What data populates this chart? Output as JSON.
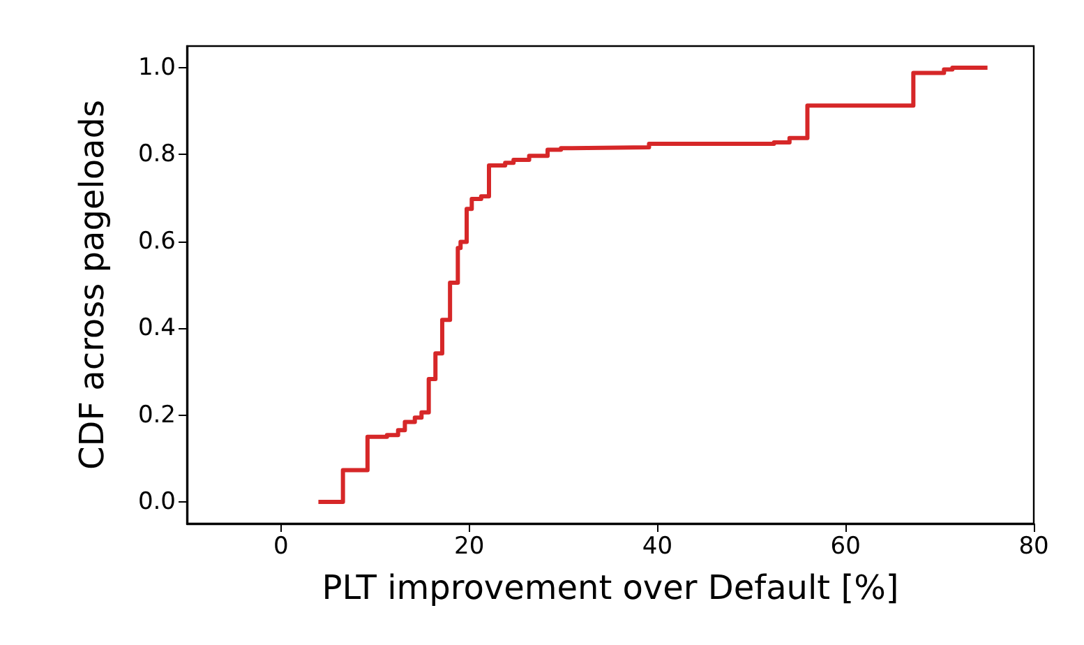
{
  "chart_data": {
    "type": "step",
    "xlabel": "PLT improvement over Default [%]",
    "ylabel": "CDF across pageloads",
    "x": [
      3.97,
      6.58,
      9.19,
      11.26,
      12.44,
      13.16,
      14.22,
      14.93,
      15.7,
      16.41,
      17.13,
      17.96,
      18.79,
      19.08,
      19.73,
      20.27,
      21.27,
      22.1,
      23.82,
      24.71,
      26.37,
      28.33,
      29.75,
      30.93,
      39.11,
      52.39,
      54.04,
      55.94,
      67.2,
      70.46,
      71.35,
      75.08
    ],
    "series": [
      {
        "color": "#d62728",
        "values": [
          0,
          0.073,
          0.15,
          0.154,
          0.165,
          0.184,
          0.194,
          0.206,
          0.283,
          0.342,
          0.419,
          0.505,
          0.585,
          0.599,
          0.675,
          0.698,
          0.704,
          0.775,
          0.781,
          0.788,
          0.797,
          0.811,
          0.815,
          0.817,
          0.825,
          0.828,
          0.838,
          0.913,
          0.988,
          0.996,
          1.0,
          1.0
        ]
      }
    ],
    "xlim": [
      -10,
      80
    ],
    "xticks": [
      0,
      20,
      40,
      60,
      80
    ],
    "ylim": [
      -0.05,
      1.05
    ],
    "yticks": [
      {
        "value": 0,
        "label": "0.0"
      },
      {
        "value": 0.2,
        "label": "0.2"
      },
      {
        "value": 0.4,
        "label": "0.4"
      },
      {
        "value": 0.6,
        "label": "0.6"
      },
      {
        "value": 0.8,
        "label": "0.8"
      },
      {
        "value": 1.0,
        "label": "1.0"
      }
    ],
    "grid": false,
    "marker": "none",
    "line_style": "solid"
  }
}
